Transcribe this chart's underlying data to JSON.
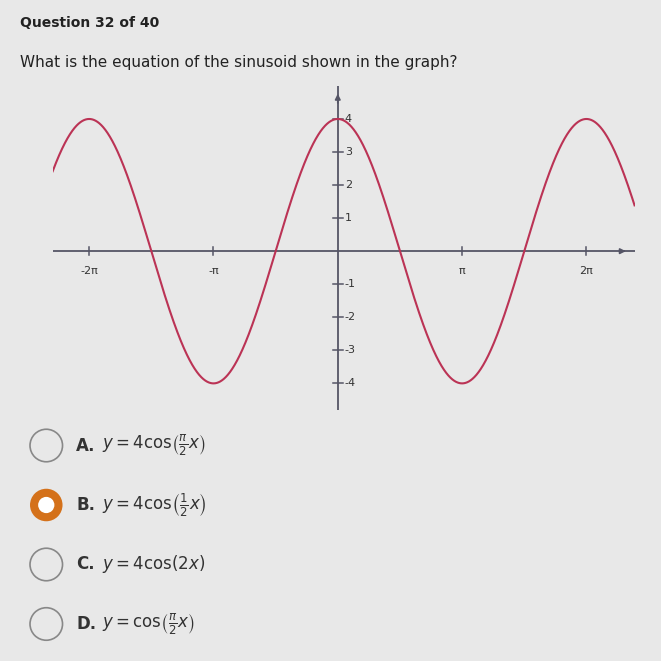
{
  "title": "Question 32 of 40",
  "question": "What is the equation of the sinusoid shown in the graph?",
  "amplitude": 4,
  "frequency": 1.0,
  "x_min": -7.2,
  "x_max": 7.2,
  "y_min": -4.8,
  "y_max": 5.0,
  "curve_color": "#bb3355",
  "axis_color": "#555566",
  "background_color": "#e8e8e8",
  "x_ticks": [
    -6.283185307,
    -3.141592654,
    3.141592654,
    6.283185307
  ],
  "x_tick_labels": [
    "-2π",
    "-π",
    "π",
    "2π"
  ],
  "y_ticks": [
    -4,
    -3,
    -2,
    -1,
    1,
    2,
    3,
    4
  ],
  "choices": [
    {
      "label": "A.",
      "math": "y = 4\\cos\\!\\left(\\frac{\\pi}{2}x\\right)",
      "selected": false
    },
    {
      "label": "B.",
      "math": "y = 4\\cos\\!\\left(\\frac{1}{2}x\\right)",
      "selected": true
    },
    {
      "label": "C.",
      "math": "y = 4\\cos(2x)",
      "selected": false
    },
    {
      "label": "D.",
      "math": "y = \\cos\\!\\left(\\frac{\\pi}{2}x\\right)",
      "selected": false
    }
  ],
  "choice_color_selected": "#d4711a",
  "choice_color_unselected": "#888888",
  "title_fontsize": 10,
  "question_fontsize": 11,
  "choice_fontsize": 12,
  "tick_fontsize": 8
}
